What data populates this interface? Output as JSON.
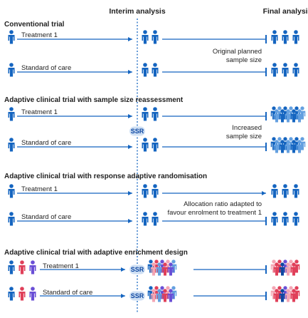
{
  "headers": {
    "interim": "Interim analysis",
    "final": "Final analysis"
  },
  "sections": [
    {
      "title": "Conventional trial",
      "rows": [
        {
          "label": "Treatment 1"
        },
        {
          "label": "Standard of care"
        }
      ],
      "note": [
        "Original planned",
        "sample size"
      ]
    },
    {
      "title": "Adaptive clinical trial with sample size reassessment",
      "rows": [
        {
          "label": "Treatment 1"
        },
        {
          "label": "Standard of care"
        }
      ],
      "badge": "SSR",
      "note": [
        "Increased",
        "sample size"
      ]
    },
    {
      "title": "Adaptive clinical trial with response adaptive randomisation",
      "rows": [
        {
          "label": "Treatment 1"
        },
        {
          "label": "Standard of care"
        }
      ],
      "note": [
        "Allocation ratio adapted to",
        "favour enrolment to treatment 1"
      ]
    },
    {
      "title": "Adaptive clinical trial with adaptive enrichment design",
      "rows": [
        {
          "label": "Treatment 1",
          "badge": "SSR"
        },
        {
          "label": "Standard of care",
          "badge": "SSR"
        }
      ]
    }
  ],
  "colors": {
    "blue": "#1565c0",
    "light_blue": "#64a0e0",
    "dark_blue": "#0d47a1",
    "red": "#e0405a",
    "pink": "#f4a6b4",
    "purple": "#6a4fd6",
    "badge_bg": "#cfe0f4"
  },
  "icons": {
    "person": "person-icon",
    "arrow": "arrow-icon"
  }
}
